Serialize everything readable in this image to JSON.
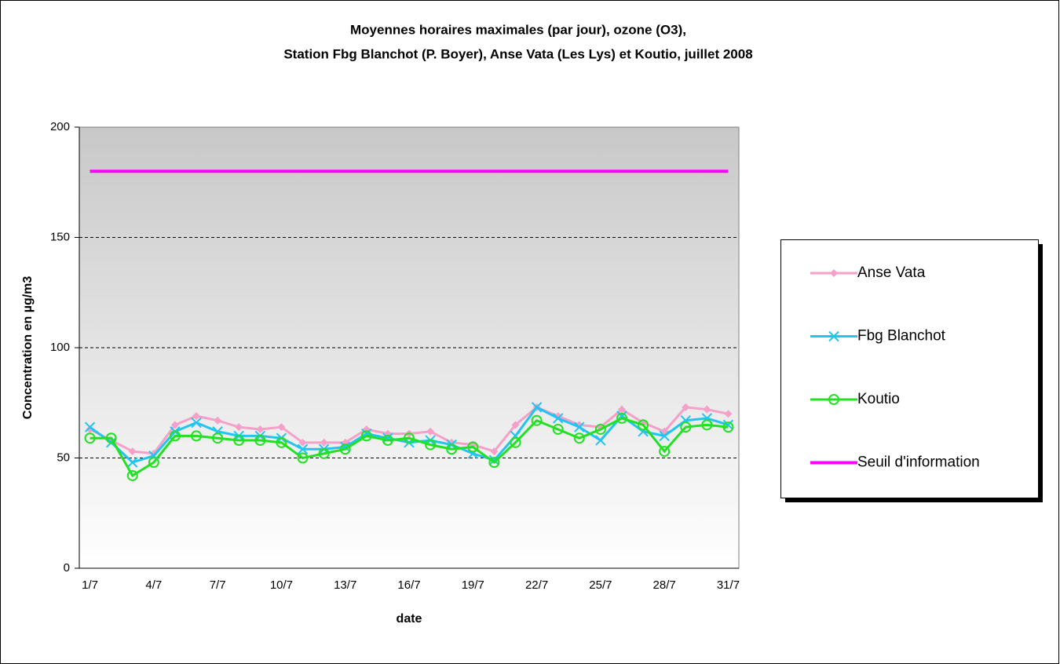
{
  "chart_data": {
    "type": "line",
    "title": [
      "Moyennes horaires maximales (par jour), ozone (O3),",
      "Station Fbg Blanchot (P. Boyer), Anse Vata (Les Lys) et Koutio, juillet 2008"
    ],
    "x_label": "date",
    "y_label": "Concentration en µg/m3",
    "categories": [
      "1/7",
      null,
      null,
      "4/7",
      null,
      null,
      "7/7",
      null,
      null,
      "10/7",
      null,
      null,
      "13/7",
      null,
      null,
      "16/7",
      null,
      null,
      "19/7",
      null,
      null,
      "22/7",
      null,
      null,
      "25/7",
      null,
      null,
      "28/7",
      null,
      null,
      "31/7"
    ],
    "ylim": [
      0,
      200
    ],
    "yticks": [
      0,
      50,
      100,
      150,
      200
    ],
    "grid": true,
    "legend": "right",
    "series": [
      {
        "name": "Anse Vata",
        "color": "#f4a0c8",
        "marker": "diamond",
        "values": [
          63,
          58,
          53,
          52,
          65,
          69,
          67,
          64,
          63,
          64,
          57,
          57,
          57,
          63,
          61,
          61,
          62,
          57,
          56,
          53,
          65,
          73,
          69,
          65,
          64,
          72,
          66,
          62,
          73,
          72,
          70
        ]
      },
      {
        "name": "Fbg Blanchot",
        "color": "#22c4f0",
        "marker": "x",
        "values": [
          64,
          57,
          48,
          51,
          62,
          66,
          62,
          60,
          60,
          59,
          54,
          54,
          55,
          61,
          59,
          57,
          58,
          56,
          52,
          49,
          60,
          73,
          68,
          64,
          58,
          69,
          62,
          60,
          67,
          68,
          65
        ]
      },
      {
        "name": "Koutio",
        "color": "#22e022",
        "marker": "circle",
        "values": [
          59,
          59,
          42,
          48,
          60,
          60,
          59,
          58,
          58,
          57,
          50,
          52,
          54,
          60,
          58,
          59,
          56,
          54,
          55,
          48,
          57,
          67,
          63,
          59,
          63,
          68,
          65,
          53,
          64,
          65,
          64
        ]
      },
      {
        "name": "Seuil d'information",
        "color": "#ff00ff",
        "marker": "none",
        "values": [
          180,
          180,
          180,
          180,
          180,
          180,
          180,
          180,
          180,
          180,
          180,
          180,
          180,
          180,
          180,
          180,
          180,
          180,
          180,
          180,
          180,
          180,
          180,
          180,
          180,
          180,
          180,
          180,
          180,
          180,
          180
        ]
      }
    ]
  }
}
